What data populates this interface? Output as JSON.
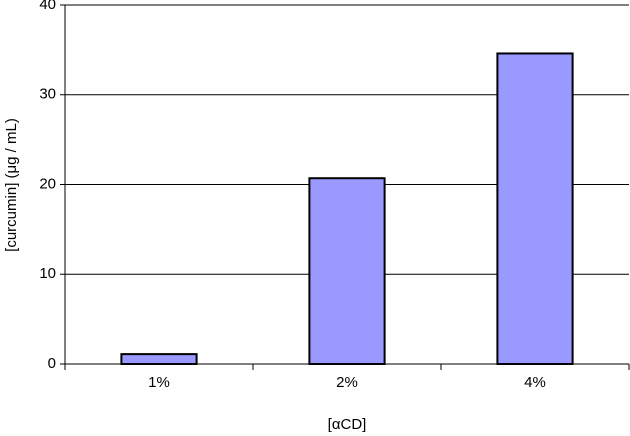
{
  "chart_data": {
    "type": "bar",
    "x_label": "[αCD]",
    "y_label": "[curcumin] (μg / mL)",
    "categories": [
      "1%",
      "2%",
      "4%"
    ],
    "values": [
      1.1,
      20.7,
      34.6
    ],
    "color": "#9999ff",
    "ylim": [
      0,
      40
    ],
    "yticks": [
      0,
      10,
      20,
      30,
      40
    ],
    "grid": true
  }
}
